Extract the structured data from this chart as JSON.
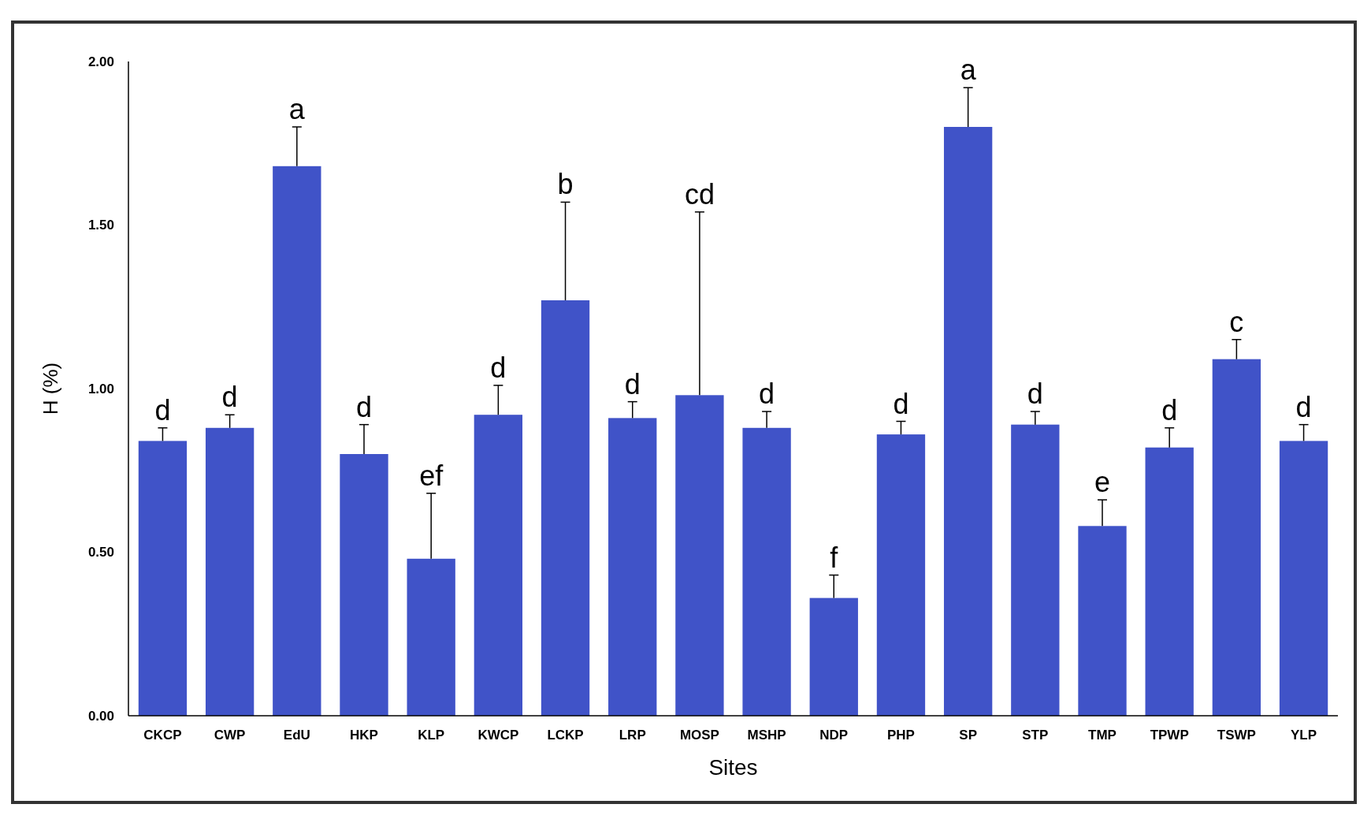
{
  "chart_data": {
    "type": "bar",
    "xlabel": "Sites",
    "ylabel": "H (%)",
    "categories": [
      "CKCP",
      "CWP",
      "EdU",
      "HKP",
      "KLP",
      "KWCP",
      "LCKP",
      "LRP",
      "MOSP",
      "MSHP",
      "NDP",
      "PHP",
      "SP",
      "STP",
      "TMP",
      "TPWP",
      "TSWP",
      "YLP"
    ],
    "values": [
      0.84,
      0.88,
      1.68,
      0.8,
      0.48,
      0.92,
      1.27,
      0.91,
      0.98,
      0.88,
      0.36,
      0.86,
      1.8,
      0.89,
      0.58,
      0.82,
      1.09,
      0.84
    ],
    "errors": [
      [
        0.84,
        0.88
      ],
      [
        0.88,
        0.92
      ],
      [
        1.68,
        1.8
      ],
      [
        0.8,
        0.89
      ],
      [
        0.48,
        0.68
      ],
      [
        0.92,
        1.01
      ],
      [
        1.27,
        1.57
      ],
      [
        0.91,
        0.96
      ],
      [
        0.98,
        1.54
      ],
      [
        0.88,
        0.93
      ],
      [
        0.36,
        0.43
      ],
      [
        0.86,
        0.9
      ],
      [
        1.8,
        1.92
      ],
      [
        0.89,
        0.93
      ],
      [
        0.58,
        0.66
      ],
      [
        0.82,
        0.88
      ],
      [
        1.09,
        1.15
      ],
      [
        0.84,
        0.89
      ]
    ],
    "color": "#4053c8",
    "ylim": [
      0,
      2
    ],
    "yticks": [
      {
        "value": 0,
        "label": "0.00"
      },
      {
        "value": 0.5,
        "label": "0.50"
      },
      {
        "value": 1,
        "label": "1.00"
      },
      {
        "value": 1.5,
        "label": "1.50"
      },
      {
        "value": 2,
        "label": "2.00"
      }
    ],
    "grid": false,
    "annotations": [
      {
        "text": "d",
        "x": "CKCP",
        "y": 0.88
      },
      {
        "text": "d",
        "x": "CWP",
        "y": 0.92
      },
      {
        "text": "a",
        "x": "EdU",
        "y": 1.8
      },
      {
        "text": "d",
        "x": "HKP",
        "y": 0.89
      },
      {
        "text": "ef",
        "x": "KLP",
        "y": 0.68
      },
      {
        "text": "d",
        "x": "KWCP",
        "y": 1.01
      },
      {
        "text": "b",
        "x": "LCKP",
        "y": 1.57
      },
      {
        "text": "d",
        "x": "LRP",
        "y": 0.96
      },
      {
        "text": "cd",
        "x": "MOSP",
        "y": 1.54
      },
      {
        "text": "d",
        "x": "MSHP",
        "y": 0.93
      },
      {
        "text": "f",
        "x": "NDP",
        "y": 0.43
      },
      {
        "text": "d",
        "x": "PHP",
        "y": 0.9
      },
      {
        "text": "a",
        "x": "SP",
        "y": 1.92
      },
      {
        "text": "d",
        "x": "STP",
        "y": 0.93
      },
      {
        "text": "e",
        "x": "TMP",
        "y": 0.66
      },
      {
        "text": "d",
        "x": "TPWP",
        "y": 0.88
      },
      {
        "text": "c",
        "x": "TSWP",
        "y": 1.15
      },
      {
        "text": "d",
        "x": "YLP",
        "y": 0.89
      }
    ]
  }
}
